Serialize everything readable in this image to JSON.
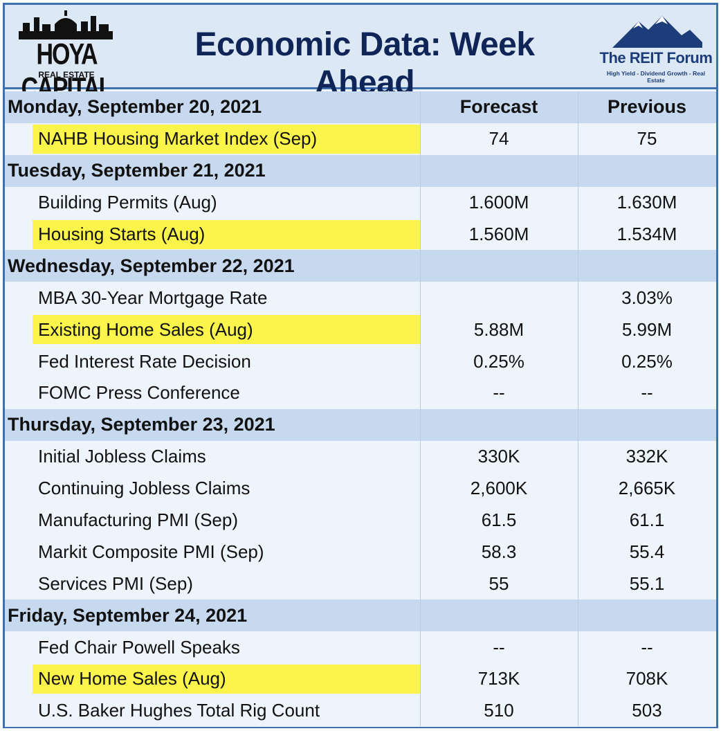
{
  "header": {
    "left_logo_text": "HOYA CAPITAL",
    "left_logo_sub": "REAL ESTATE",
    "title": "Economic Data: Week Ahead",
    "right_logo_text": "The REIT Forum",
    "right_logo_tagline": "High Yield - Dividend Growth - Real Estate"
  },
  "columns": {
    "forecast": "Forecast",
    "previous": "Previous"
  },
  "days": [
    {
      "label": "Monday, September 20, 2021",
      "events": [
        {
          "name": "NAHB Housing Market Index (Sep)",
          "forecast": "74",
          "previous": "75",
          "highlight": true
        }
      ]
    },
    {
      "label": "Tuesday, September 21, 2021",
      "events": [
        {
          "name": "Building Permits (Aug)",
          "forecast": "1.600M",
          "previous": "1.630M",
          "highlight": false
        },
        {
          "name": "Housing Starts (Aug)",
          "forecast": "1.560M",
          "previous": "1.534M",
          "highlight": true
        }
      ]
    },
    {
      "label": "Wednesday, September 22, 2021",
      "events": [
        {
          "name": "MBA 30-Year Mortgage Rate",
          "forecast": "",
          "previous": "3.03%",
          "highlight": false
        },
        {
          "name": "Existing Home Sales (Aug)",
          "forecast": "5.88M",
          "previous": "5.99M",
          "highlight": true
        },
        {
          "name": "Fed Interest Rate Decision",
          "forecast": "0.25%",
          "previous": "0.25%",
          "highlight": false
        },
        {
          "name": "FOMC Press Conference",
          "forecast": "--",
          "previous": "--",
          "highlight": false
        }
      ]
    },
    {
      "label": "Thursday, September 23, 2021",
      "events": [
        {
          "name": "Initial Jobless Claims",
          "forecast": "330K",
          "previous": "332K",
          "highlight": false
        },
        {
          "name": "Continuing Jobless Claims",
          "forecast": "2,600K",
          "previous": "2,665K",
          "highlight": false
        },
        {
          "name": "Manufacturing PMI (Sep)",
          "forecast": "61.5",
          "previous": "61.1",
          "highlight": false
        },
        {
          "name": "Markit Composite PMI (Sep)",
          "forecast": "58.3",
          "previous": "55.4",
          "highlight": false
        },
        {
          "name": "Services PMI (Sep)",
          "forecast": "55",
          "previous": "55.1",
          "highlight": false
        }
      ]
    },
    {
      "label": "Friday, September 24, 2021",
      "events": [
        {
          "name": "Fed Chair Powell Speaks",
          "forecast": "--",
          "previous": "--",
          "highlight": false
        },
        {
          "name": "New Home Sales (Aug)",
          "forecast": "713K",
          "previous": "708K",
          "highlight": true
        },
        {
          "name": "U.S. Baker Hughes Total Rig Count",
          "forecast": "510",
          "previous": "503",
          "highlight": false
        }
      ]
    }
  ],
  "colors": {
    "title": "#0f2557",
    "border": "#3f6fb3",
    "day_row": "#c7d9ef",
    "highlight": "#fbf44a"
  }
}
